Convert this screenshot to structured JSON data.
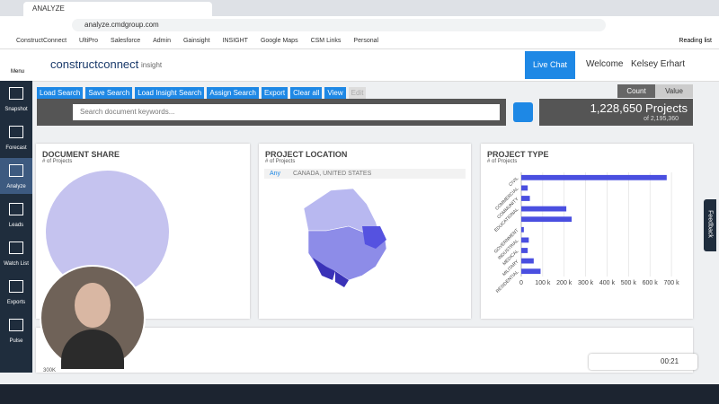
{
  "browser": {
    "tab_title": "ANALYZE",
    "url": "analyze.cmdgroup.com",
    "bookmarks": [
      "ConstructConnect",
      "UltiPro",
      "Salesforce",
      "Admin",
      "Gainsight",
      "INSIGHT",
      "Google Maps",
      "CSM Links",
      "Personal"
    ],
    "reading_list": "Reading list"
  },
  "app": {
    "menu": "Menu",
    "logo": "constructconnect",
    "logo_suffix": "insight",
    "live_chat": "Live Chat",
    "welcome": "Welcome",
    "user": "Kelsey Erhart",
    "sidebar": [
      "Snapshot",
      "Forecast",
      "Analyze",
      "Leads",
      "Watch List",
      "Exports",
      "Pulse"
    ],
    "toolbar": [
      "Load Search",
      "Save Search",
      "Load Insight Search",
      "Assign Search",
      "Export",
      "Clear all",
      "View",
      "Edit"
    ],
    "search_placeholder": "Search document keywords...",
    "count_tab": "Count",
    "value_tab": "Value",
    "count": "1,228,650 Projects",
    "of_total": "of 2,195,360",
    "feedback": "Feedback"
  },
  "panels": {
    "document_share": {
      "title": "DOCUMENT SHARE",
      "subtitle": "# of Projects"
    },
    "project_location": {
      "title": "PROJECT LOCATION",
      "subtitle": "# of Projects",
      "crumb_any": "Any",
      "crumb_region": "CANADA, UNITED STATES"
    },
    "bottom": {
      "axis_label": "300K"
    }
  },
  "player": {
    "time": "00:21"
  },
  "chart_data": {
    "type": "hbar",
    "title": "PROJECT TYPE",
    "subtitle": "# of Projects",
    "color": "#4a4fe0",
    "categories": [
      "CIVIL",
      "COMMERCIAL",
      "COMMUNITY",
      "EDUCATIONAL",
      null,
      "GOVERNMENT",
      "INDUSTRIAL",
      "MEDICAL",
      "MILITARY",
      "RESIDENTIAL"
    ],
    "values": [
      678000,
      30000,
      40000,
      210000,
      235000,
      12000,
      35000,
      30000,
      58000,
      90000
    ],
    "xlim": [
      0,
      750000
    ],
    "xticks": [
      0,
      {
        "value": 100000,
        "label": "100 k"
      },
      {
        "value": 200000,
        "label": "200 k"
      },
      {
        "value": 300000,
        "label": "300 k"
      },
      {
        "value": 400000,
        "label": "400 k"
      },
      {
        "value": 500000,
        "label": "500 k"
      },
      {
        "value": 600000,
        "label": "600 k"
      },
      {
        "value": 700000,
        "label": "700 k"
      }
    ],
    "grid": true
  }
}
